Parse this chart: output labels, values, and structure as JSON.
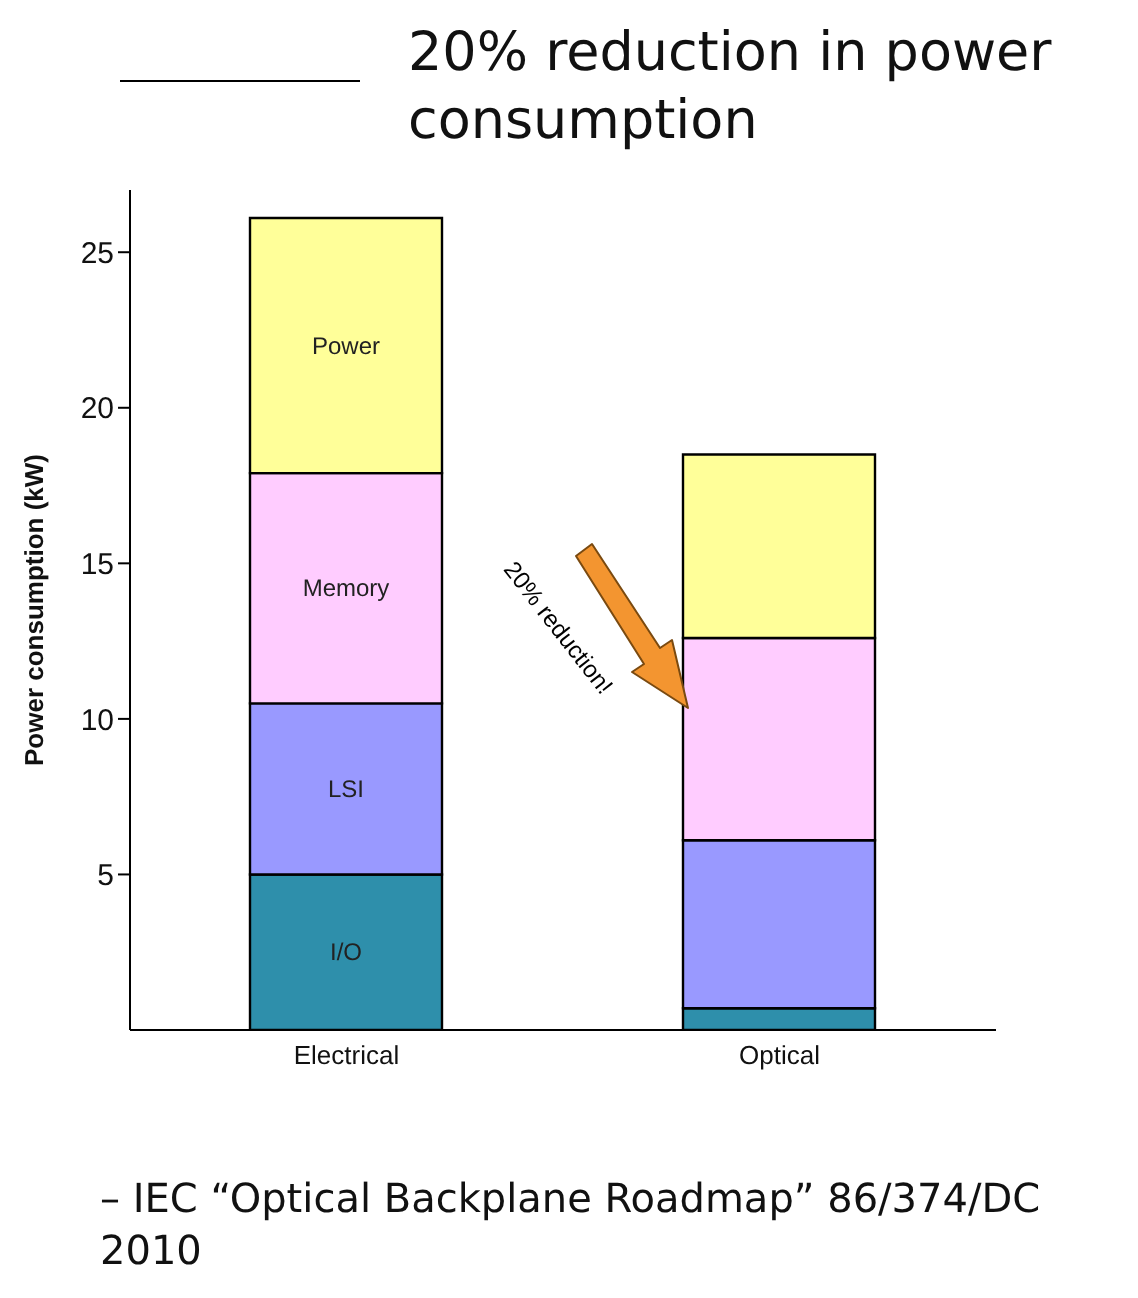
{
  "chart_data": {
    "type": "bar",
    "title": "20% reduction in power consumption",
    "ylabel": "Power consumption (kW)",
    "stacked": true,
    "categories": [
      "Electrical",
      "Optical"
    ],
    "series": [
      {
        "name": "I/O",
        "color": "#2e8fab",
        "values": [
          5.0,
          0.7
        ]
      },
      {
        "name": "LSI",
        "color": "#9999ff",
        "values": [
          5.5,
          5.4
        ]
      },
      {
        "name": "Memory",
        "color": "#ffccff",
        "values": [
          7.4,
          6.5
        ]
      },
      {
        "name": "Power",
        "color": "#ffff99",
        "values": [
          8.2,
          5.9
        ]
      }
    ],
    "ylim": [
      0,
      27
    ],
    "yticks": [
      5,
      10,
      15,
      20,
      25
    ],
    "annotations": [
      "20% reduction!",
      "– IEC “Optical Backplane Roadmap” 86/374/DC 2010"
    ]
  }
}
